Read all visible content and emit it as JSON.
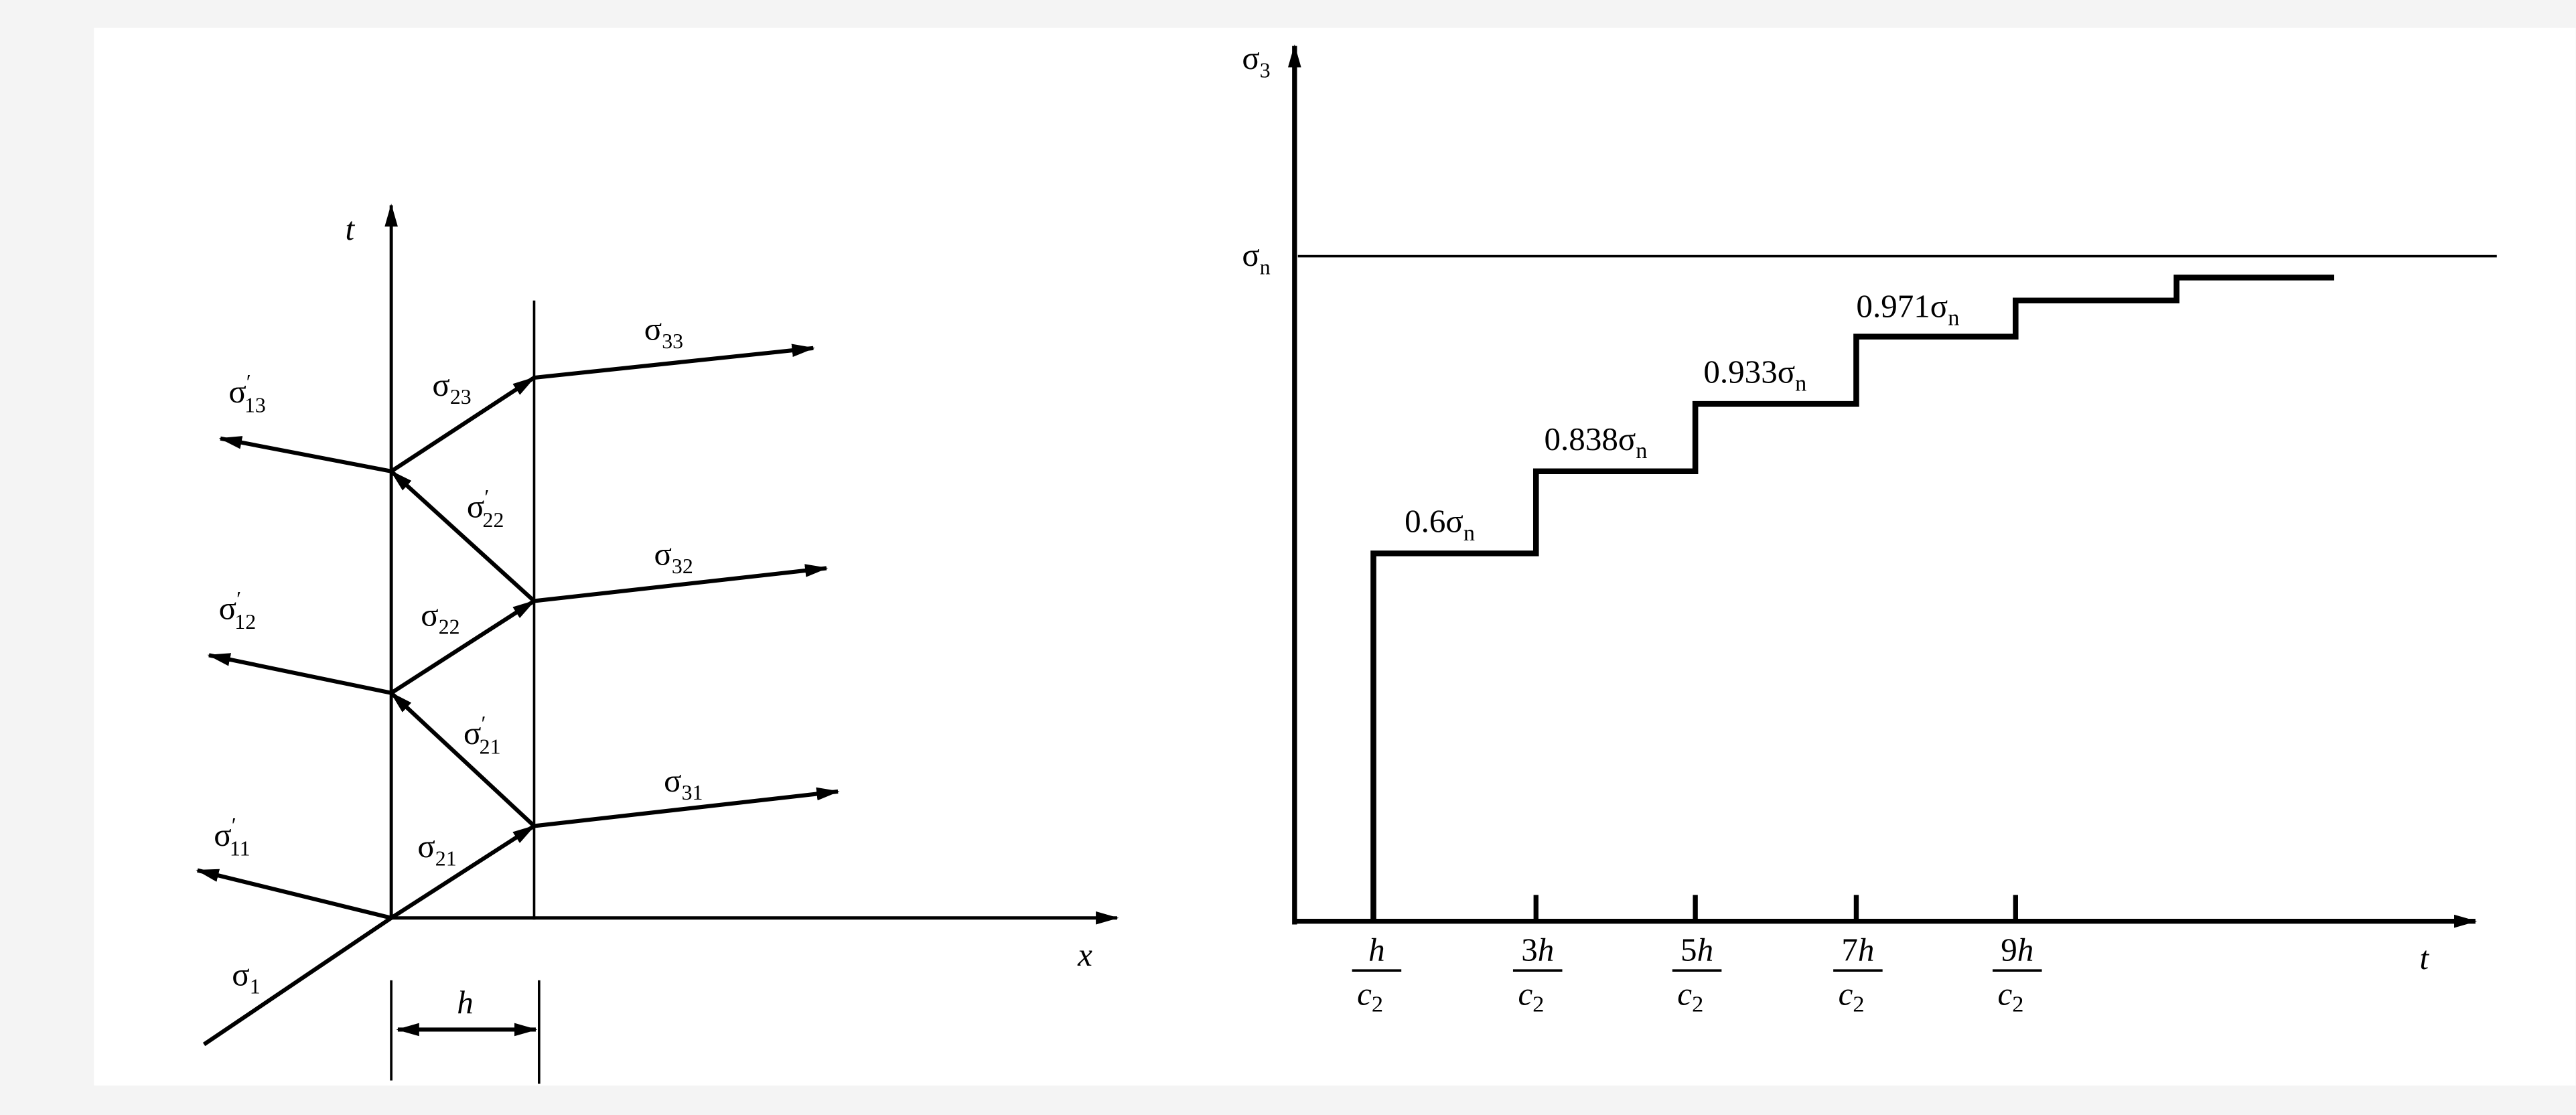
{
  "left_diagram": {
    "axis_labels": {
      "t": "t",
      "x": "x"
    },
    "dimension": "h",
    "waves": [
      {
        "symbol": "σ",
        "sub": "1"
      },
      {
        "symbol": "σ",
        "prime": "′",
        "sub": "11"
      },
      {
        "symbol": "σ",
        "sub": "21"
      },
      {
        "symbol": "σ",
        "sub": "31"
      },
      {
        "symbol": "σ",
        "prime": "′",
        "sub": "21"
      },
      {
        "symbol": "σ",
        "sub": "22"
      },
      {
        "symbol": "σ",
        "sub": "32"
      },
      {
        "symbol": "σ",
        "prime": "′",
        "sub": "12"
      },
      {
        "symbol": "σ",
        "prime": "′",
        "sub": "22"
      },
      {
        "symbol": "σ",
        "sub": "23"
      },
      {
        "symbol": "σ",
        "sub": "33"
      },
      {
        "symbol": "σ",
        "prime": "′",
        "sub": "13"
      }
    ]
  },
  "right_diagram": {
    "y_axis": {
      "symbol": "σ",
      "sub": "3"
    },
    "x_axis": "t",
    "reference": {
      "symbol": "σ",
      "sub": "n"
    },
    "levels": [
      {
        "coefficient": "0.6",
        "symbol": "σ",
        "sub": "n"
      },
      {
        "coefficient": "0.838",
        "symbol": "σ",
        "sub": "n"
      },
      {
        "coefficient": "0.933",
        "symbol": "σ",
        "sub": "n"
      },
      {
        "coefficient": "0.971",
        "symbol": "σ",
        "sub": "n"
      }
    ],
    "time_ticks": [
      {
        "variable": "h",
        "denominator": "c",
        "denominator_sub": "2"
      },
      {
        "coefficient": "3",
        "variable": "h",
        "denominator": "c",
        "denominator_sub": "2"
      },
      {
        "coefficient": "5",
        "variable": "h",
        "denominator": "c",
        "denominator_sub": "2"
      },
      {
        "coefficient": "7",
        "variable": "h",
        "denominator": "c",
        "denominator_sub": "2"
      },
      {
        "coefficient": "9",
        "variable": "h",
        "denominator": "c",
        "denominator_sub": "2"
      }
    ]
  }
}
